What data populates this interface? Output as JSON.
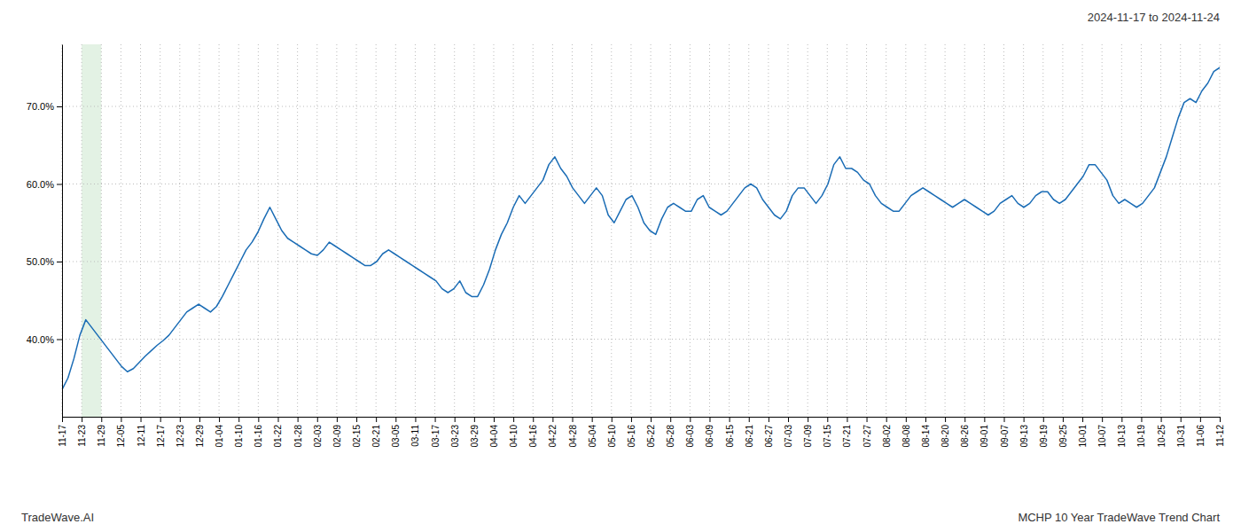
{
  "chart_data": {
    "type": "line",
    "title": "2024-11-17 to 2024-11-24",
    "annotations": [
      "TradeWave.AI",
      "MCHP 10 Year TradeWave Trend Chart"
    ],
    "color": "#1a6cb5",
    "grid": true,
    "highlight": {
      "x": [
        1,
        2
      ],
      "color": "#c8e6c9"
    },
    "xlim": [
      0,
      59
    ],
    "xticks": [
      {
        "value": 0,
        "label": "11-17"
      },
      {
        "value": 1,
        "label": "11-23"
      },
      {
        "value": 2,
        "label": "11-29"
      },
      {
        "value": 3,
        "label": "12-05"
      },
      {
        "value": 4,
        "label": "12-11"
      },
      {
        "value": 5,
        "label": "12-17"
      },
      {
        "value": 6,
        "label": "12-23"
      },
      {
        "value": 7,
        "label": "12-29"
      },
      {
        "value": 8,
        "label": "01-04"
      },
      {
        "value": 9,
        "label": "01-10"
      },
      {
        "value": 10,
        "label": "01-16"
      },
      {
        "value": 11,
        "label": "01-22"
      },
      {
        "value": 12,
        "label": "01-28"
      },
      {
        "value": 13,
        "label": "02-03"
      },
      {
        "value": 14,
        "label": "02-09"
      },
      {
        "value": 15,
        "label": "02-15"
      },
      {
        "value": 16,
        "label": "02-21"
      },
      {
        "value": 17,
        "label": "03-05"
      },
      {
        "value": 18,
        "label": "03-11"
      },
      {
        "value": 19,
        "label": "03-17"
      },
      {
        "value": 20,
        "label": "03-23"
      },
      {
        "value": 21,
        "label": "03-29"
      },
      {
        "value": 22,
        "label": "04-04"
      },
      {
        "value": 23,
        "label": "04-10"
      },
      {
        "value": 24,
        "label": "04-16"
      },
      {
        "value": 25,
        "label": "04-22"
      },
      {
        "value": 26,
        "label": "04-28"
      },
      {
        "value": 27,
        "label": "05-04"
      },
      {
        "value": 28,
        "label": "05-10"
      },
      {
        "value": 29,
        "label": "05-16"
      },
      {
        "value": 30,
        "label": "05-22"
      },
      {
        "value": 31,
        "label": "05-28"
      },
      {
        "value": 32,
        "label": "06-03"
      },
      {
        "value": 33,
        "label": "06-09"
      },
      {
        "value": 34,
        "label": "06-15"
      },
      {
        "value": 35,
        "label": "06-21"
      },
      {
        "value": 36,
        "label": "06-27"
      },
      {
        "value": 37,
        "label": "07-03"
      },
      {
        "value": 38,
        "label": "07-09"
      },
      {
        "value": 39,
        "label": "07-15"
      },
      {
        "value": 40,
        "label": "07-21"
      },
      {
        "value": 41,
        "label": "07-27"
      },
      {
        "value": 42,
        "label": "08-02"
      },
      {
        "value": 43,
        "label": "08-08"
      },
      {
        "value": 44,
        "label": "08-14"
      },
      {
        "value": 45,
        "label": "08-20"
      },
      {
        "value": 46,
        "label": "08-26"
      },
      {
        "value": 47,
        "label": "09-01"
      },
      {
        "value": 48,
        "label": "09-07"
      },
      {
        "value": 49,
        "label": "09-13"
      },
      {
        "value": 50,
        "label": "09-19"
      },
      {
        "value": 51,
        "label": "09-25"
      },
      {
        "value": 52,
        "label": "10-01"
      },
      {
        "value": 53,
        "label": "10-07"
      },
      {
        "value": 54,
        "label": "10-13"
      },
      {
        "value": 55,
        "label": "10-19"
      },
      {
        "value": 56,
        "label": "10-25"
      },
      {
        "value": 57,
        "label": "10-31"
      },
      {
        "value": 58,
        "label": "11-06"
      },
      {
        "value": 59,
        "label": "11-12"
      }
    ],
    "ylim": [
      30,
      78
    ],
    "yticks": [
      {
        "value": 40.0,
        "label": "40.0%"
      },
      {
        "value": 50.0,
        "label": "50.0%"
      },
      {
        "value": 60.0,
        "label": "60.0%"
      },
      {
        "value": 70.0,
        "label": "70.0%"
      }
    ],
    "values": [
      33.5,
      35.0,
      37.5,
      40.5,
      42.5,
      41.5,
      40.5,
      39.5,
      38.5,
      37.5,
      36.5,
      35.8,
      36.2,
      37.0,
      37.8,
      38.5,
      39.2,
      39.8,
      40.5,
      41.5,
      42.5,
      43.5,
      44.0,
      44.5,
      44.0,
      43.5,
      44.2,
      45.5,
      47.0,
      48.5,
      50.0,
      51.5,
      52.5,
      53.8,
      55.5,
      57.0,
      55.5,
      54.0,
      53.0,
      52.5,
      52.0,
      51.5,
      51.0,
      50.8,
      51.5,
      52.5,
      52.0,
      51.5,
      51.0,
      50.5,
      50.0,
      49.5,
      49.5,
      50.0,
      51.0,
      51.5,
      51.0,
      50.5,
      50.0,
      49.5,
      49.0,
      48.5,
      48.0,
      47.5,
      46.5,
      46.0,
      46.5,
      47.5,
      46.0,
      45.5,
      45.5,
      47.0,
      49.0,
      51.5,
      53.5,
      55.0,
      57.0,
      58.5,
      57.5,
      58.5,
      59.5,
      60.5,
      62.5,
      63.5,
      62.0,
      61.0,
      59.5,
      58.5,
      57.5,
      58.5,
      59.5,
      58.5,
      56.0,
      55.0,
      56.5,
      58.0,
      58.5,
      57.0,
      55.0,
      54.0,
      53.5,
      55.5,
      57.0,
      57.5,
      57.0,
      56.5,
      56.5,
      58.0,
      58.5,
      57.0,
      56.5,
      56.0,
      56.5,
      57.5,
      58.5,
      59.5,
      60.0,
      59.5,
      58.0,
      57.0,
      56.0,
      55.5,
      56.5,
      58.5,
      59.5,
      59.5,
      58.5,
      57.5,
      58.5,
      60.0,
      62.5,
      63.5,
      62.0,
      62.0,
      61.5,
      60.5,
      60.0,
      58.5,
      57.5,
      57.0,
      56.5,
      56.5,
      57.5,
      58.5,
      59.0,
      59.5,
      59.0,
      58.5,
      58.0,
      57.5,
      57.0,
      57.5,
      58.0,
      57.5,
      57.0,
      56.5,
      56.0,
      56.5,
      57.5,
      58.0,
      58.5,
      57.5,
      57.0,
      57.5,
      58.5,
      59.0,
      59.0,
      58.0,
      57.5,
      58.0,
      59.0,
      60.0,
      61.0,
      62.5,
      62.5,
      61.5,
      60.5,
      58.5,
      57.5,
      58.0,
      57.5,
      57.0,
      57.5,
      58.5,
      59.5,
      61.5,
      63.5,
      66.0,
      68.5,
      70.5,
      71.0,
      70.5,
      72.0,
      73.0,
      74.5,
      75.0
    ]
  }
}
